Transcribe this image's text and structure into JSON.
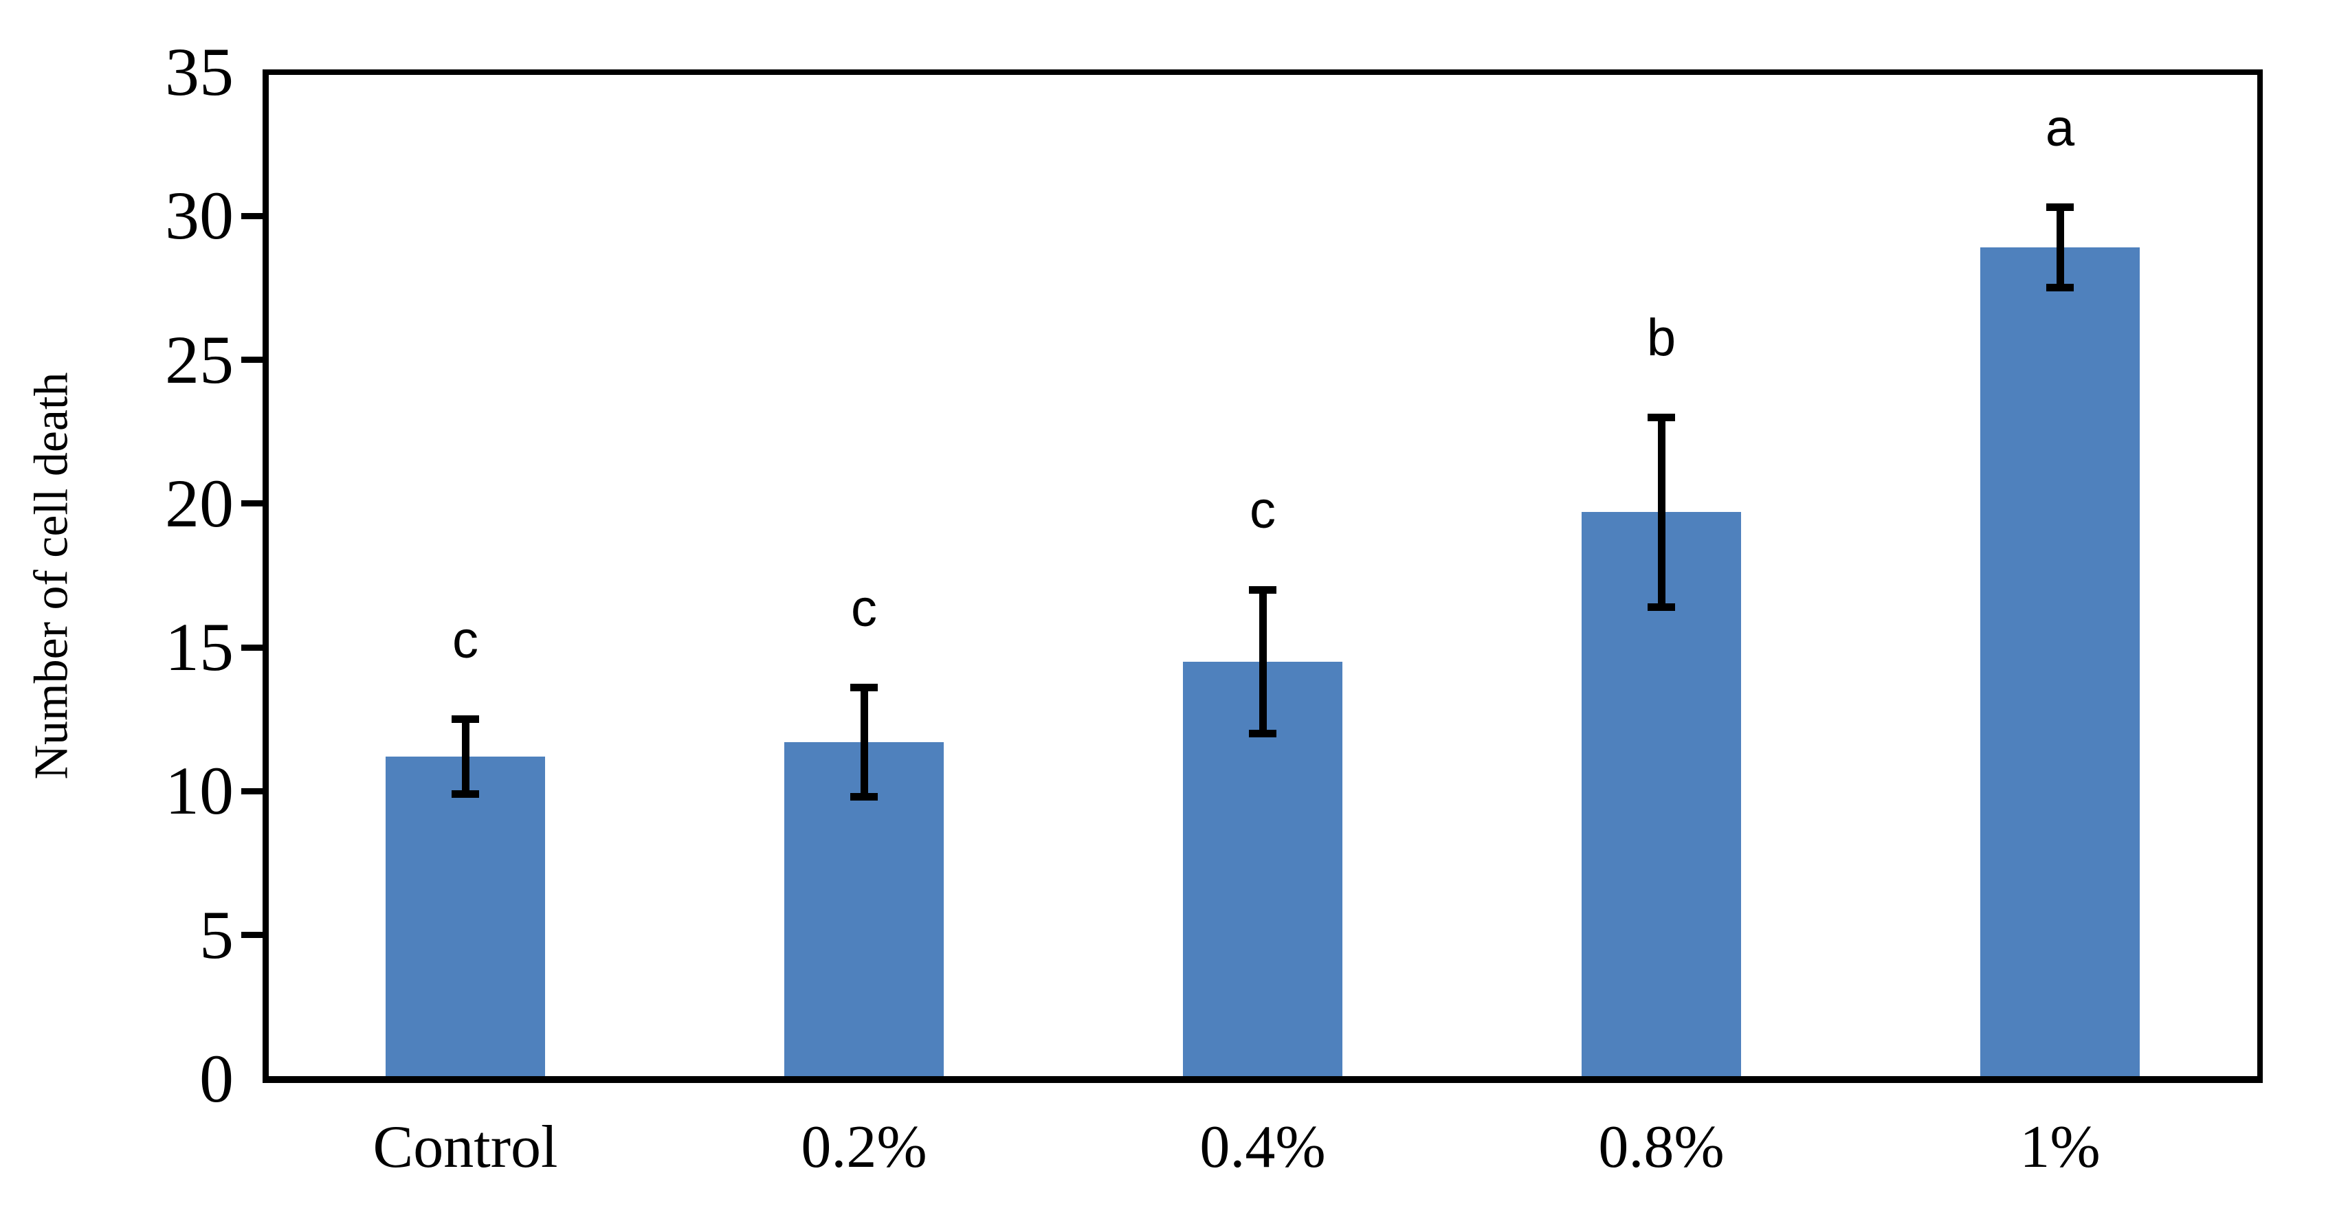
{
  "chart_data": {
    "type": "bar",
    "title": "",
    "xlabel": "",
    "ylabel": "Number of cell death",
    "categories": [
      "Control",
      "0.2%",
      "0.4%",
      "0.8%",
      "1%"
    ],
    "values": [
      11.2,
      11.7,
      14.5,
      19.7,
      28.9
    ],
    "error_bars": [
      1.3,
      1.9,
      2.5,
      3.3,
      1.4
    ],
    "sig_letters": [
      "c",
      "c",
      "c",
      "b",
      "a"
    ],
    "ylim": [
      0,
      35
    ],
    "ytick_step": 5,
    "ytick_labels": [
      "0",
      "5",
      "10",
      "15",
      "20",
      "25",
      "30",
      "35"
    ],
    "grid": false,
    "legend": "none",
    "bar_color": "#4F81BD",
    "axis_color": "#000000",
    "error_bar_color": "#000000"
  }
}
